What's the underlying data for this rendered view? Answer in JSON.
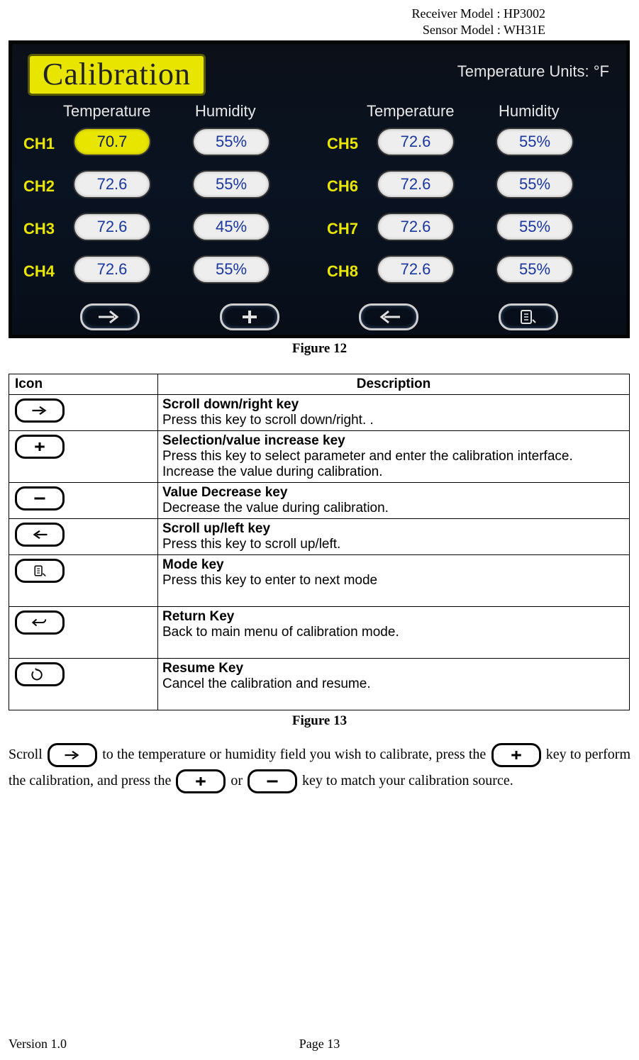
{
  "header": {
    "receiver_model_label": "Receiver Model : HP3002",
    "sensor_model_label": "Sensor Model : WH31E"
  },
  "device_screen": {
    "title": "Calibration",
    "title_bg": "#e8e600",
    "title_fg": "#222222",
    "temp_units_text": "Temperature Units: °F",
    "column_headers": {
      "temperature": "Temperature",
      "humidity": "Humidity"
    },
    "background_gradient": [
      "#0b1018",
      "#0a1322",
      "#070e18"
    ],
    "label_color": "#e8e600",
    "pill_bg": "#eeeeee",
    "pill_text_color": "#1a379e",
    "pill_selected_bg": "#e8e600",
    "rows_left": [
      {
        "ch": "CH1",
        "temp": "70.7",
        "hum": "55%",
        "temp_selected": true
      },
      {
        "ch": "CH2",
        "temp": "72.6",
        "hum": "55%",
        "temp_selected": false
      },
      {
        "ch": "CH3",
        "temp": "72.6",
        "hum": "45%",
        "temp_selected": false
      },
      {
        "ch": "CH4",
        "temp": "72.6",
        "hum": "55%",
        "temp_selected": false
      }
    ],
    "rows_right": [
      {
        "ch": "CH5",
        "temp": "72.6",
        "hum": "55%"
      },
      {
        "ch": "CH6",
        "temp": "72.6",
        "hum": "55%"
      },
      {
        "ch": "CH7",
        "temp": "72.6",
        "hum": "55%"
      },
      {
        "ch": "CH8",
        "temp": "72.6",
        "hum": "55%"
      }
    ],
    "bottom_buttons": [
      "arrow-right",
      "plus",
      "arrow-left",
      "mode"
    ]
  },
  "figure12_caption": "Figure 12",
  "icon_table": {
    "headers": {
      "icon": "Icon",
      "description": "Description"
    },
    "rows": [
      {
        "icon": "arrow-right",
        "title": "Scroll down/right key",
        "desc": "Press this key to scroll down/right.    ."
      },
      {
        "icon": "plus",
        "title": "Selection/value increase key",
        "desc": "Press this key to select parameter and enter the calibration interface. Increase the value during calibration."
      },
      {
        "icon": "minus",
        "title": "Value Decrease key",
        "desc": "Decrease the value during calibration."
      },
      {
        "icon": "arrow-left",
        "title": "Scroll up/left key",
        "desc": "Press this key to scroll up/left."
      },
      {
        "icon": "mode",
        "title": "Mode key",
        "desc": "Press this key to enter to next mode"
      },
      {
        "icon": "return",
        "title": "Return Key",
        "desc": "Back to main menu of calibration mode."
      },
      {
        "icon": "resume",
        "title": "Resume Key",
        "desc": "Cancel the calibration and resume."
      }
    ]
  },
  "figure13_caption": "Figure 13",
  "body": {
    "t1": "Scroll ",
    "t2": " to the temperature or humidity field you wish to calibrate, press the ",
    "t3": " key to perform the calibration, and press the ",
    "t4": " or ",
    "t5": " key to match your calibration source."
  },
  "footer": {
    "version": "Version 1.0",
    "page": "Page 13"
  }
}
